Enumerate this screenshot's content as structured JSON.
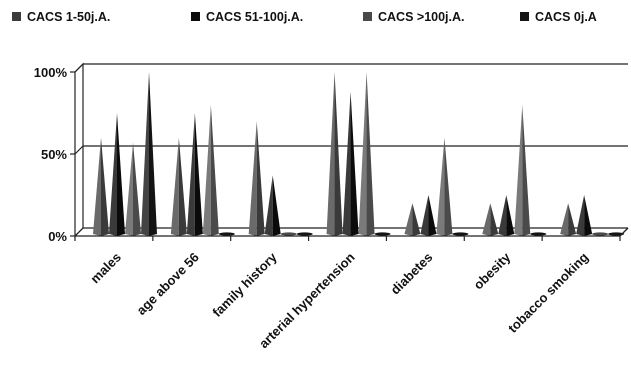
{
  "chart_data": {
    "type": "bar",
    "style": "3d-cone",
    "title": "",
    "xlabel": "",
    "ylabel": "",
    "ylim": [
      0,
      100
    ],
    "y_ticks": [
      "0%",
      "50%",
      "100%"
    ],
    "grid": true,
    "legend_position": "top",
    "categories": [
      "males",
      "age above 56",
      "family history",
      "arterial hypertension",
      "diabetes",
      "obesity",
      "tobacco smoking"
    ],
    "series": [
      {
        "name": "CACS 1-50j.A.",
        "color": "#3a3a3a",
        "values": [
          60,
          60,
          70,
          100,
          20,
          20,
          20
        ]
      },
      {
        "name": "CACS 51-100j.A.",
        "color": "#0b0b0b",
        "values": [
          75,
          75,
          37,
          88,
          25,
          25,
          25
        ]
      },
      {
        "name": "CACS >100j.A.",
        "color": "#4a4a4a",
        "values": [
          57,
          80,
          0,
          100,
          60,
          80,
          0
        ]
      },
      {
        "name": "CACS 0j.A",
        "color": "#141414",
        "values": [
          100,
          0,
          0,
          0,
          0,
          0,
          0
        ]
      }
    ]
  }
}
